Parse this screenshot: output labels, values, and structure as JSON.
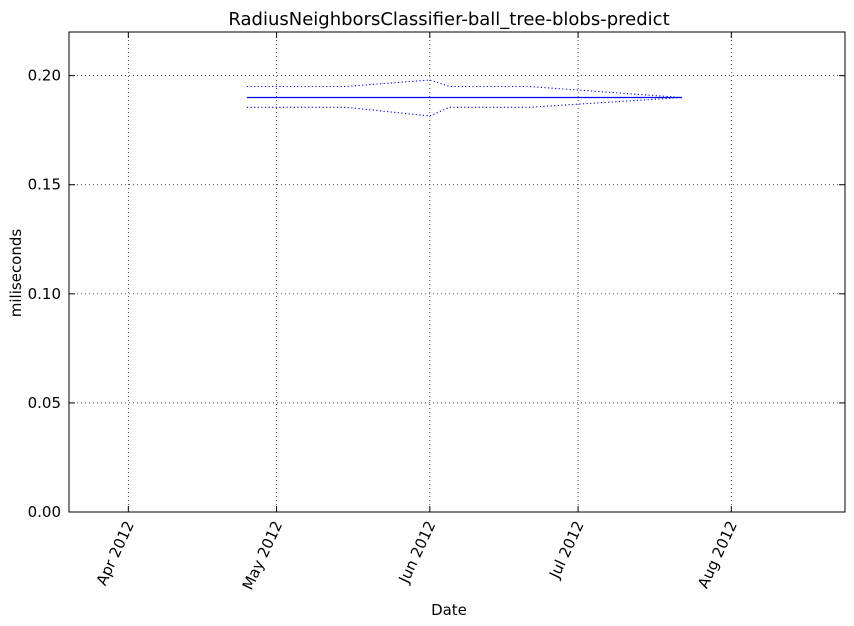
{
  "chart_data": {
    "type": "line",
    "title": "RadiusNeighborsClassifier-ball_tree-blobs-predict",
    "xlabel": "Date",
    "ylabel": "miliseconds",
    "x_axis": {
      "type": "date",
      "range": [
        "2012-03-20",
        "2012-08-24"
      ],
      "ticks": [
        {
          "date": "2012-04-01",
          "label": "Apr 2012"
        },
        {
          "date": "2012-05-01",
          "label": "May 2012"
        },
        {
          "date": "2012-06-01",
          "label": "Jun 2012"
        },
        {
          "date": "2012-07-01",
          "label": "Jul 2012"
        },
        {
          "date": "2012-08-01",
          "label": "Aug 2012"
        }
      ]
    },
    "y_axis": {
      "range": [
        0.0,
        0.22
      ],
      "ticks": [
        {
          "value": 0.0,
          "label": "0.00"
        },
        {
          "value": 0.05,
          "label": "0.05"
        },
        {
          "value": 0.1,
          "label": "0.10"
        },
        {
          "value": 0.15,
          "label": "0.15"
        },
        {
          "value": 0.2,
          "label": "0.20"
        }
      ]
    },
    "grid": true,
    "series": [
      {
        "role": "mean",
        "style": "solid",
        "color": "#0000ff",
        "points": [
          {
            "x": "2012-04-25",
            "y": 0.19
          },
          {
            "x": "2012-05-15",
            "y": 0.19
          },
          {
            "x": "2012-06-01",
            "y": 0.19
          },
          {
            "x": "2012-06-21",
            "y": 0.19
          },
          {
            "x": "2012-07-22",
            "y": 0.19
          }
        ]
      },
      {
        "role": "upper",
        "style": "dotted",
        "color": "#0000ff",
        "points": [
          {
            "x": "2012-04-25",
            "y": 0.195
          },
          {
            "x": "2012-05-15",
            "y": 0.195
          },
          {
            "x": "2012-06-01",
            "y": 0.198
          },
          {
            "x": "2012-06-05",
            "y": 0.195
          },
          {
            "x": "2012-06-21",
            "y": 0.195
          },
          {
            "x": "2012-07-22",
            "y": 0.19
          }
        ]
      },
      {
        "role": "lower",
        "style": "dotted",
        "color": "#0000ff",
        "points": [
          {
            "x": "2012-04-25",
            "y": 0.1855
          },
          {
            "x": "2012-05-15",
            "y": 0.1855
          },
          {
            "x": "2012-06-01",
            "y": 0.1815
          },
          {
            "x": "2012-06-05",
            "y": 0.1855
          },
          {
            "x": "2012-06-21",
            "y": 0.1855
          },
          {
            "x": "2012-07-22",
            "y": 0.19
          }
        ]
      }
    ]
  }
}
